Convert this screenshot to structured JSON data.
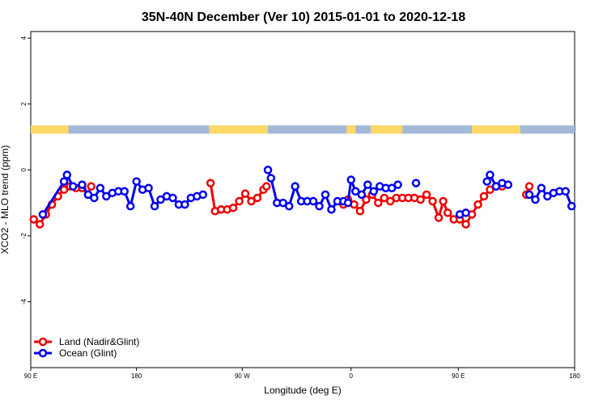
{
  "chart_data": {
    "type": "line",
    "title": "35N-40N December (Ver 10)   2015-01-01 to 2020-12-18",
    "xlabel": "Longitude (deg E)",
    "ylabel": "XCO2 - MLO trend (ppm)",
    "xlim": [
      90,
      450
    ],
    "ylim": [
      -6,
      4.2
    ],
    "x_ticks": [
      {
        "value": 90,
        "label": "90 E"
      },
      {
        "value": 160,
        "label": "180"
      },
      {
        "value": 230,
        "label": "90 W"
      },
      {
        "value": 302,
        "label": "0"
      },
      {
        "value": 373,
        "label": "90 E"
      },
      {
        "value": 450,
        "label": "180"
      }
    ],
    "y_ticks": [
      {
        "value": 4,
        "label": "4"
      },
      {
        "value": 2,
        "label": "2"
      },
      {
        "value": 0,
        "label": "0"
      },
      {
        "value": -2,
        "label": "-2"
      },
      {
        "value": -4,
        "label": "-4"
      }
    ],
    "land_ocean_strip": {
      "y_range": [
        1.1,
        1.35
      ],
      "land_color": "#FFD966",
      "ocean_color": "#A3B9D9",
      "land_segments": [
        [
          90,
          115
        ],
        [
          208,
          247
        ],
        [
          299,
          305
        ],
        [
          315,
          336
        ],
        [
          382,
          414
        ]
      ]
    },
    "legend": {
      "position": "bottom-left",
      "entries": [
        "Land (Nadir&Glint)",
        "Ocean (Glint)"
      ]
    },
    "series": [
      {
        "name": "Land (Nadir&Glint)",
        "color": "#EE0000",
        "segments": [
          [
            [
              92,
              -1.5
            ],
            [
              96,
              -1.65
            ],
            [
              100,
              -1.35
            ],
            [
              104,
              -1.05
            ],
            [
              108,
              -0.8
            ],
            [
              112,
              -0.6
            ],
            [
              116,
              -0.5
            ],
            [
              120,
              -0.55
            ],
            [
              124,
              -0.55
            ],
            [
              128,
              -0.75
            ],
            [
              130,
              -0.5
            ]
          ],
          [
            [
              209,
              -0.4
            ],
            [
              212,
              -1.25
            ],
            [
              216,
              -1.2
            ],
            [
              220,
              -1.2
            ],
            [
              224,
              -1.15
            ],
            [
              228,
              -0.95
            ],
            [
              232,
              -0.72
            ],
            [
              236,
              -0.95
            ],
            [
              240,
              -0.85
            ],
            [
              244,
              -0.6
            ],
            [
              246,
              -0.5
            ]
          ],
          [
            [
              297,
              -1.05
            ],
            [
              300,
              -0.9
            ],
            [
              304,
              -1.05
            ],
            [
              308,
              -1.25
            ],
            [
              312,
              -0.9
            ],
            [
              316,
              -0.75
            ],
            [
              320,
              -1.0
            ],
            [
              324,
              -0.85
            ],
            [
              328,
              -0.95
            ],
            [
              332,
              -0.85
            ],
            [
              336,
              -0.85
            ],
            [
              340,
              -0.85
            ],
            [
              344,
              -0.85
            ],
            [
              348,
              -0.9
            ],
            [
              352,
              -0.75
            ],
            [
              356,
              -0.95
            ],
            [
              360,
              -1.45
            ],
            [
              363,
              -0.95
            ],
            [
              366,
              -1.3
            ],
            [
              370,
              -1.5
            ],
            [
              374,
              -1.5
            ],
            [
              378,
              -1.65
            ],
            [
              382,
              -1.35
            ],
            [
              386,
              -1.05
            ],
            [
              390,
              -0.8
            ],
            [
              394,
              -0.6
            ],
            [
              398,
              -0.5
            ],
            [
              402,
              -0.5
            ]
          ],
          [
            [
              418,
              -0.75
            ],
            [
              420,
              -0.5
            ]
          ]
        ]
      },
      {
        "name": "Ocean (Glint)",
        "color": "#0000EE",
        "segments": [
          [
            [
              98,
              -1.35
            ],
            [
              112,
              -0.35
            ],
            [
              114,
              -0.15
            ],
            [
              118,
              -0.5
            ],
            [
              124,
              -0.45
            ],
            [
              128,
              -0.75
            ],
            [
              132,
              -0.85
            ],
            [
              136,
              -0.55
            ],
            [
              140,
              -0.8
            ],
            [
              144,
              -0.7
            ],
            [
              148,
              -0.65
            ],
            [
              152,
              -0.65
            ],
            [
              156,
              -1.1
            ],
            [
              160,
              -0.35
            ],
            [
              164,
              -0.6
            ],
            [
              168,
              -0.55
            ],
            [
              172,
              -1.1
            ],
            [
              176,
              -0.9
            ],
            [
              180,
              -0.8
            ],
            [
              184,
              -0.85
            ],
            [
              188,
              -1.05
            ],
            [
              192,
              -1.05
            ],
            [
              196,
              -0.85
            ],
            [
              200,
              -0.8
            ],
            [
              204,
              -0.75
            ]
          ],
          [
            [
              247,
              0.0
            ],
            [
              249,
              -0.25
            ],
            [
              253,
              -1.0
            ],
            [
              257,
              -1.0
            ],
            [
              261,
              -1.1
            ],
            [
              265,
              -0.5
            ],
            [
              269,
              -0.95
            ],
            [
              273,
              -0.95
            ],
            [
              277,
              -0.95
            ],
            [
              281,
              -1.1
            ],
            [
              285,
              -0.75
            ],
            [
              289,
              -1.2
            ],
            [
              293,
              -0.95
            ],
            [
              297,
              -0.95
            ],
            [
              300,
              -1.0
            ],
            [
              302,
              -0.3
            ],
            [
              305,
              -0.65
            ],
            [
              309,
              -0.75
            ],
            [
              313,
              -0.45
            ],
            [
              317,
              -0.65
            ],
            [
              321,
              -0.5
            ],
            [
              325,
              -0.55
            ],
            [
              329,
              -0.55
            ],
            [
              333,
              -0.45
            ]
          ],
          [
            [
              345,
              -0.4
            ]
          ],
          [
            [
              374,
              -1.35
            ],
            [
              378,
              -1.3
            ]
          ],
          [
            [
              392,
              -0.35
            ],
            [
              394,
              -0.15
            ],
            [
              398,
              -0.5
            ],
            [
              402,
              -0.4
            ],
            [
              406,
              -0.45
            ]
          ],
          [
            [
              420,
              -0.75
            ],
            [
              424,
              -0.9
            ],
            [
              428,
              -0.55
            ],
            [
              432,
              -0.8
            ],
            [
              436,
              -0.7
            ],
            [
              440,
              -0.65
            ],
            [
              444,
              -0.65
            ],
            [
              448,
              -1.1
            ]
          ]
        ]
      }
    ]
  }
}
